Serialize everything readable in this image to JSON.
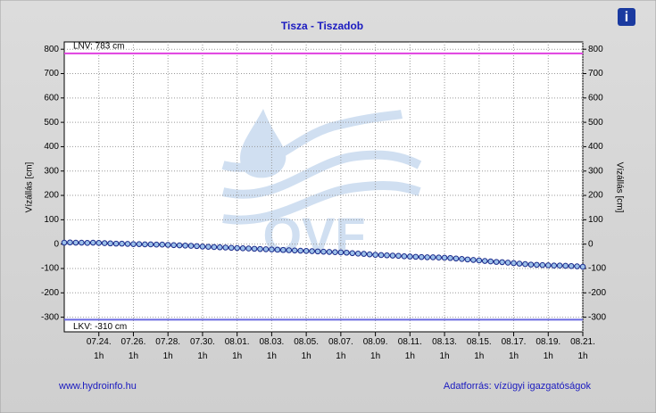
{
  "chart_data": {
    "type": "line",
    "title": "Tisza - Tiszadob",
    "ylabel": "Vízállás [cm]",
    "y2label": "Vízállás [cm]",
    "watermark": "OVF",
    "footer_left": "www.hydroinfo.hu",
    "footer_right": "Adatforrás: vízügyi igazgatóságok",
    "info_icon": "i",
    "color": "#1a2a8a",
    "marker_fill": "#9cc0ea",
    "grid": true,
    "ylim": [
      -360,
      830
    ],
    "yticks": [
      -300,
      -200,
      -100,
      0,
      100,
      200,
      300,
      400,
      500,
      600,
      700,
      800
    ],
    "y2lim": [
      -360,
      830
    ],
    "y2ticks": [
      -300,
      -200,
      -100,
      0,
      100,
      200,
      300,
      400,
      500,
      600,
      700,
      800
    ],
    "xlim": [
      "07.22. 1h",
      "08.21. 1h"
    ],
    "xticks": [
      "07.24. 1h",
      "07.26. 1h",
      "07.28. 1h",
      "07.30. 1h",
      "08.01. 1h",
      "08.03. 1h",
      "08.05. 1h",
      "08.07. 1h",
      "08.09. 1h",
      "08.11. 1h",
      "08.13. 1h",
      "08.15. 1h",
      "08.17. 1h",
      "08.19. 1h",
      "08.21. 1h"
    ],
    "reference_lines": [
      {
        "label": "LNV: 783 cm",
        "value": 783,
        "color": "#e040e0"
      },
      {
        "label": "LKV: -310 cm",
        "value": -310,
        "color": "#6a6ae0"
      }
    ],
    "x": [
      "07.22. 1h",
      "07.22. 9h",
      "07.22. 17h",
      "07.23. 1h",
      "07.23. 9h",
      "07.23. 17h",
      "07.24. 1h",
      "07.24. 9h",
      "07.24. 17h",
      "07.25. 1h",
      "07.25. 9h",
      "07.25. 17h",
      "07.26. 1h",
      "07.26. 9h",
      "07.26. 17h",
      "07.27. 1h",
      "07.27. 9h",
      "07.27. 17h",
      "07.28. 1h",
      "07.28. 9h",
      "07.28. 17h",
      "07.29. 1h",
      "07.29. 9h",
      "07.29. 17h",
      "07.30. 1h",
      "07.30. 9h",
      "07.30. 17h",
      "07.31. 1h",
      "07.31. 9h",
      "07.31. 17h",
      "08.01. 1h",
      "08.01. 9h",
      "08.01. 17h",
      "08.02. 1h",
      "08.02. 9h",
      "08.02. 17h",
      "08.03. 1h",
      "08.03. 9h",
      "08.03. 17h",
      "08.04. 1h",
      "08.04. 9h",
      "08.04. 17h",
      "08.05. 1h",
      "08.05. 9h",
      "08.05. 17h",
      "08.06. 1h",
      "08.06. 9h",
      "08.06. 17h",
      "08.07. 1h",
      "08.07. 9h",
      "08.07. 17h",
      "08.08. 1h",
      "08.08. 9h",
      "08.08. 17h",
      "08.09. 1h",
      "08.09. 9h",
      "08.09. 17h",
      "08.10. 1h",
      "08.10. 9h",
      "08.10. 17h",
      "08.11. 1h",
      "08.11. 9h",
      "08.11. 17h",
      "08.12. 1h",
      "08.12. 9h",
      "08.12. 17h",
      "08.13. 1h",
      "08.13. 9h",
      "08.13. 17h",
      "08.14. 1h",
      "08.14. 9h",
      "08.14. 17h",
      "08.15. 1h",
      "08.15. 9h",
      "08.15. 17h",
      "08.16. 1h",
      "08.16. 9h",
      "08.16. 17h",
      "08.17. 1h",
      "08.17. 9h",
      "08.17. 17h",
      "08.18. 1h",
      "08.18. 9h",
      "08.18. 17h",
      "08.19. 1h",
      "08.19. 9h",
      "08.19. 17h",
      "08.20. 1h",
      "08.20. 9h",
      "08.20. 17h",
      "08.21. 1h"
    ],
    "values": [
      6,
      7,
      6,
      6,
      5,
      6,
      5,
      4,
      3,
      2,
      2,
      1,
      0,
      0,
      -1,
      -1,
      -2,
      -2,
      -3,
      -4,
      -5,
      -6,
      -7,
      -8,
      -10,
      -11,
      -12,
      -13,
      -14,
      -15,
      -16,
      -17,
      -18,
      -19,
      -20,
      -21,
      -22,
      -23,
      -24,
      -25,
      -26,
      -27,
      -28,
      -29,
      -30,
      -31,
      -32,
      -33,
      -34,
      -35,
      -37,
      -39,
      -40,
      -42,
      -44,
      -45,
      -46,
      -47,
      -48,
      -50,
      -51,
      -52,
      -53,
      -54,
      -54,
      -55,
      -56,
      -57,
      -59,
      -61,
      -63,
      -65,
      -67,
      -69,
      -71,
      -73,
      -74,
      -76,
      -78,
      -80,
      -82,
      -84,
      -85,
      -86,
      -87,
      -88,
      -88,
      -89,
      -90,
      -91,
      -93
    ]
  }
}
